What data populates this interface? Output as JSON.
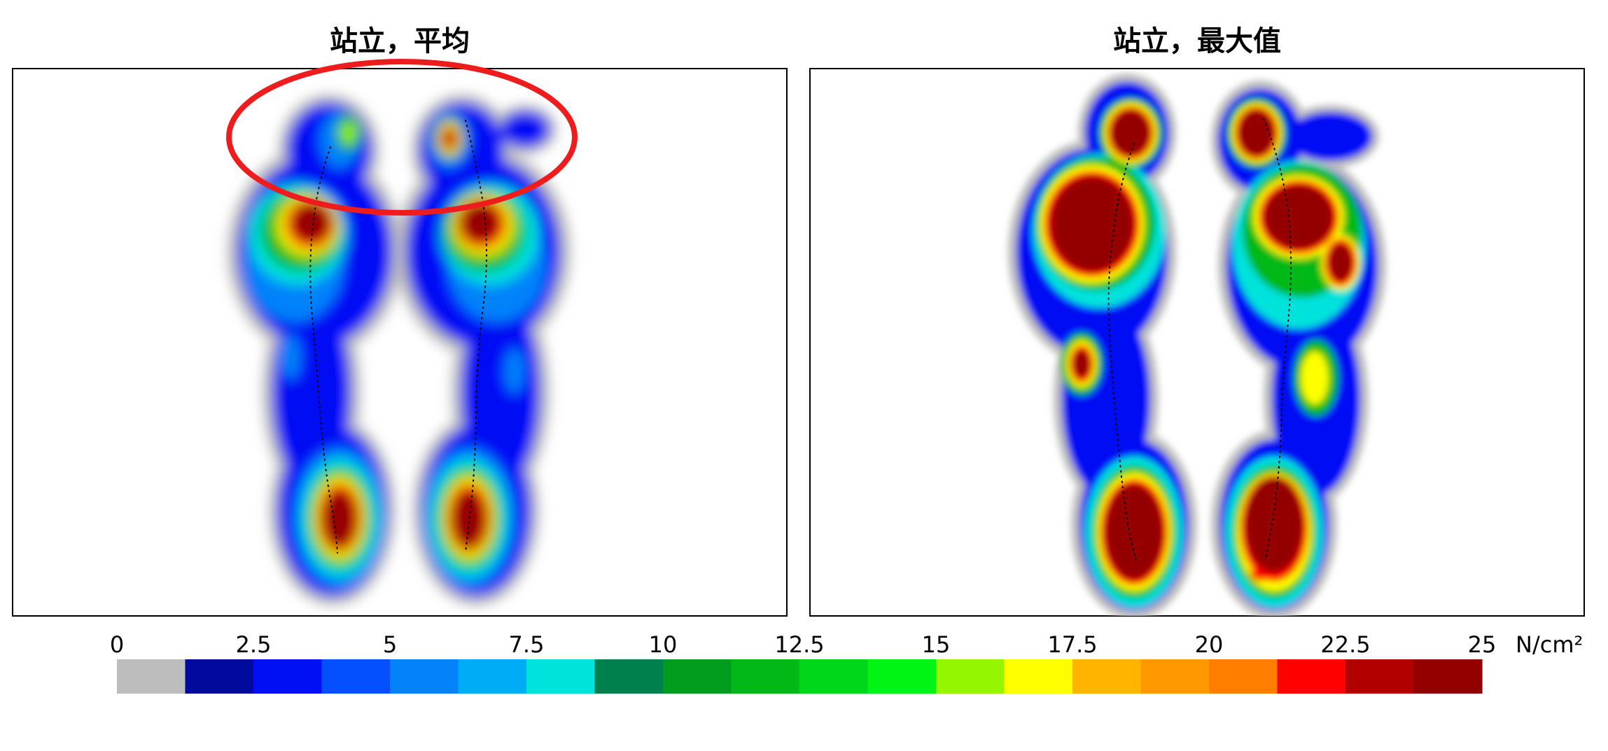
{
  "chart_data": [
    {
      "type": "heatmap",
      "title": "站立，平均",
      "panel": "left",
      "mode": "average",
      "annotation": "red-ellipse-around-toes",
      "colors": {
        "ellipse": "#ee1c1c"
      }
    },
    {
      "type": "heatmap",
      "title": "站立，最大值",
      "panel": "right",
      "mode": "maximum"
    }
  ],
  "colorbar": {
    "min": 0,
    "max": 25,
    "tick_labels": [
      "0",
      "2.5",
      "5",
      "7.5",
      "10",
      "12.5",
      "15",
      "17.5",
      "20",
      "22.5",
      "25"
    ],
    "unit": "N/cm²",
    "colors": [
      "#bdbdbd",
      "#000a9c",
      "#0010f4",
      "#0450ff",
      "#0482fa",
      "#00acf6",
      "#00e2dc",
      "#00804c",
      "#009c1e",
      "#00b816",
      "#00d61a",
      "#00f414",
      "#94f600",
      "#ffff00",
      "#ffb400",
      "#ff9800",
      "#ff7e00",
      "#ff0000",
      "#b20000",
      "#940000"
    ]
  }
}
